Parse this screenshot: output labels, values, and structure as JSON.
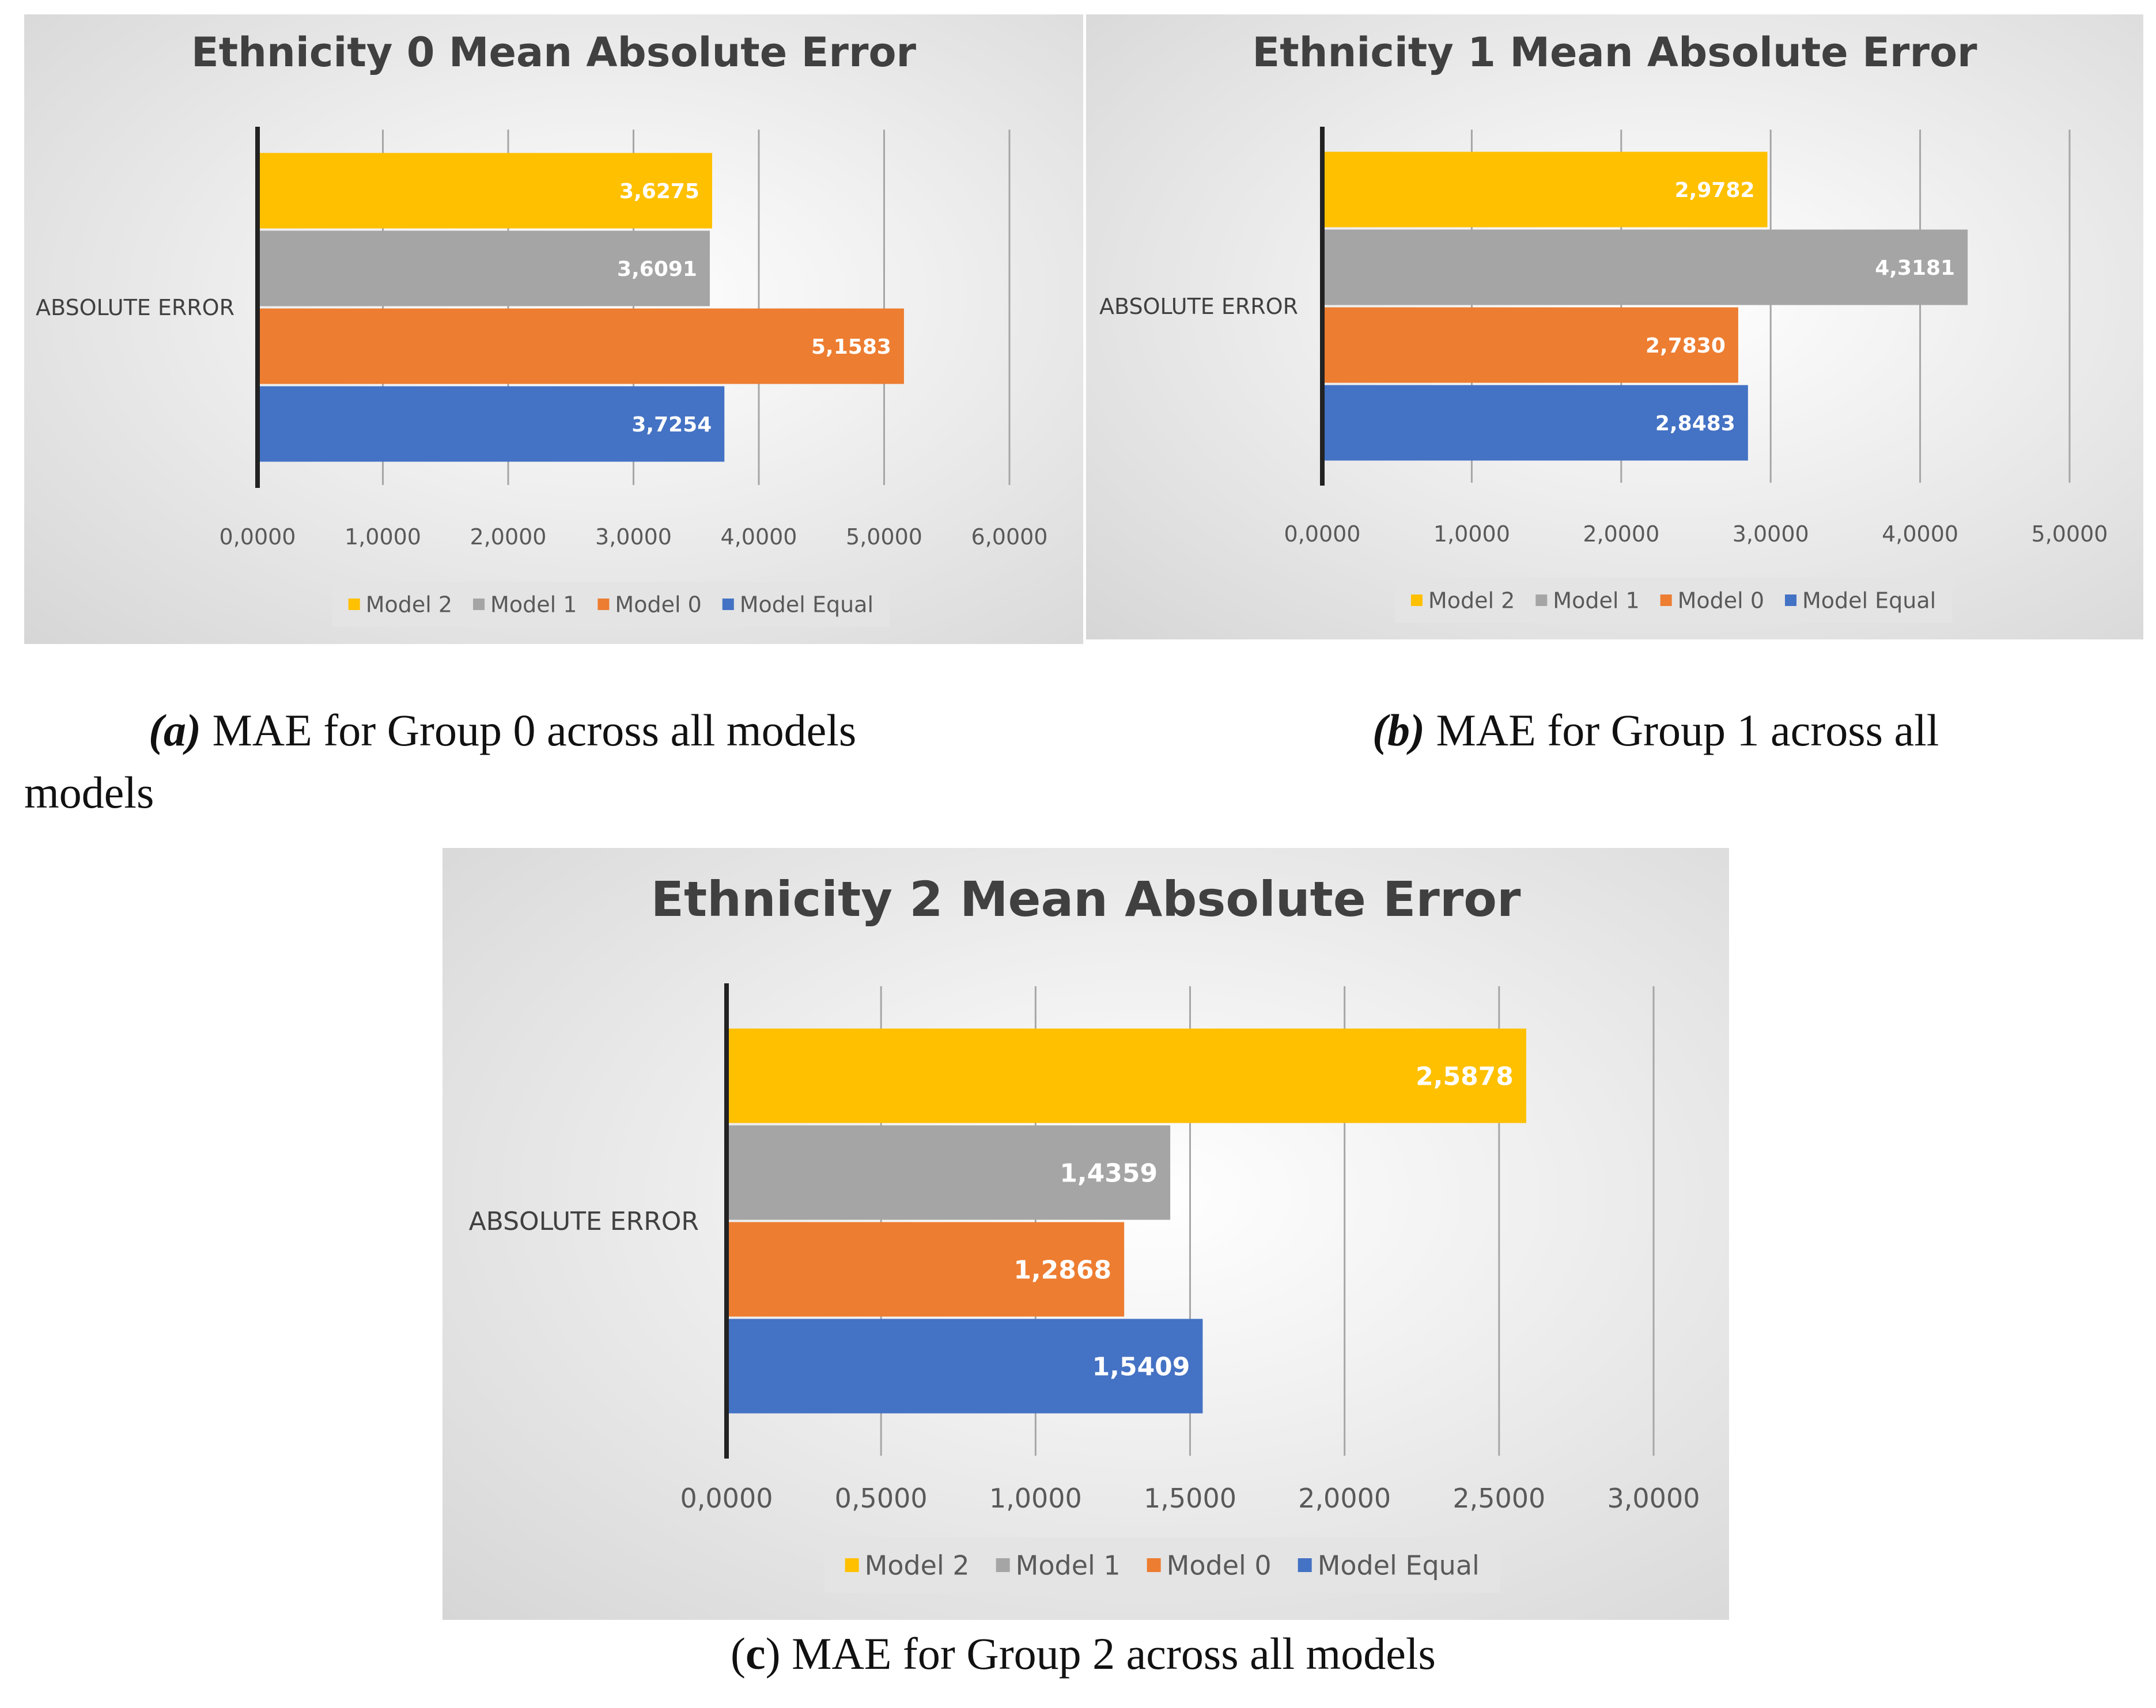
{
  "chart_data": [
    {
      "type": "bar",
      "orientation": "horizontal",
      "title": "Ethnicity 0 Mean Absolute Error",
      "category": "ABSOLUTE ERROR",
      "series": [
        {
          "name": "Model 2",
          "value": 3.6275,
          "label": "3,6275",
          "color": "#FFC000"
        },
        {
          "name": "Model 1",
          "value": 3.6091,
          "label": "3,6091",
          "color": "#A5A5A5"
        },
        {
          "name": "Model 0",
          "value": 5.1583,
          "label": "5,1583",
          "color": "#ED7D31"
        },
        {
          "name": "Model Equal",
          "value": 3.7254,
          "label": "3,7254",
          "color": "#4472C4"
        }
      ],
      "xlim": [
        0,
        6
      ],
      "ticks": [
        0,
        1,
        2,
        3,
        4,
        5,
        6
      ],
      "tick_labels": [
        "0,0000",
        "1,0000",
        "2,0000",
        "3,0000",
        "4,0000",
        "5,0000",
        "6,0000"
      ],
      "legend": [
        "Model 2",
        "Model 1",
        "Model 0",
        "Model Equal"
      ],
      "legend_position": "bottom"
    },
    {
      "type": "bar",
      "orientation": "horizontal",
      "title": "Ethnicity 1 Mean Absolute Error",
      "category": "ABSOLUTE ERROR",
      "series": [
        {
          "name": "Model 2",
          "value": 2.9782,
          "label": "2,9782",
          "color": "#FFC000"
        },
        {
          "name": "Model 1",
          "value": 4.3181,
          "label": "4,3181",
          "color": "#A5A5A5"
        },
        {
          "name": "Model 0",
          "value": 2.783,
          "label": "2,7830",
          "color": "#ED7D31"
        },
        {
          "name": "Model Equal",
          "value": 2.8483,
          "label": "2,8483",
          "color": "#4472C4"
        }
      ],
      "xlim": [
        0,
        5
      ],
      "ticks": [
        0,
        1,
        2,
        3,
        4,
        5
      ],
      "tick_labels": [
        "0,0000",
        "1,0000",
        "2,0000",
        "3,0000",
        "4,0000",
        "5,0000"
      ],
      "legend": [
        "Model 2",
        "Model 1",
        "Model 0",
        "Model Equal"
      ],
      "legend_position": "bottom"
    },
    {
      "type": "bar",
      "orientation": "horizontal",
      "title": "Ethnicity 2 Mean Absolute Error",
      "category": "ABSOLUTE ERROR",
      "series": [
        {
          "name": "Model 2",
          "value": 2.5878,
          "label": "2,5878",
          "color": "#FFC000"
        },
        {
          "name": "Model 1",
          "value": 1.4359,
          "label": "1,4359",
          "color": "#A5A5A5"
        },
        {
          "name": "Model 0",
          "value": 1.2868,
          "label": "1,2868",
          "color": "#ED7D31"
        },
        {
          "name": "Model Equal",
          "value": 1.5409,
          "label": "1,5409",
          "color": "#4472C4"
        }
      ],
      "xlim": [
        0,
        3
      ],
      "ticks": [
        0,
        0.5,
        1,
        1.5,
        2,
        2.5,
        3
      ],
      "tick_labels": [
        "0,0000",
        "0,5000",
        "1,0000",
        "1,5000",
        "2,0000",
        "2,5000",
        "3,0000"
      ],
      "legend": [
        "Model 2",
        "Model 1",
        "Model 0",
        "Model Equal"
      ],
      "legend_position": "bottom"
    }
  ],
  "captions": {
    "a": {
      "letter": "(a)",
      "text": " MAE for Group 0 across all models"
    },
    "b": {
      "letter": "(b)",
      "text": " MAE for Group 1 across all"
    },
    "b_wrap": "models",
    "c": {
      "paren_open": "(",
      "letter": "c",
      "paren_close": ")",
      "text": " MAE for Group 2 across all models"
    }
  }
}
